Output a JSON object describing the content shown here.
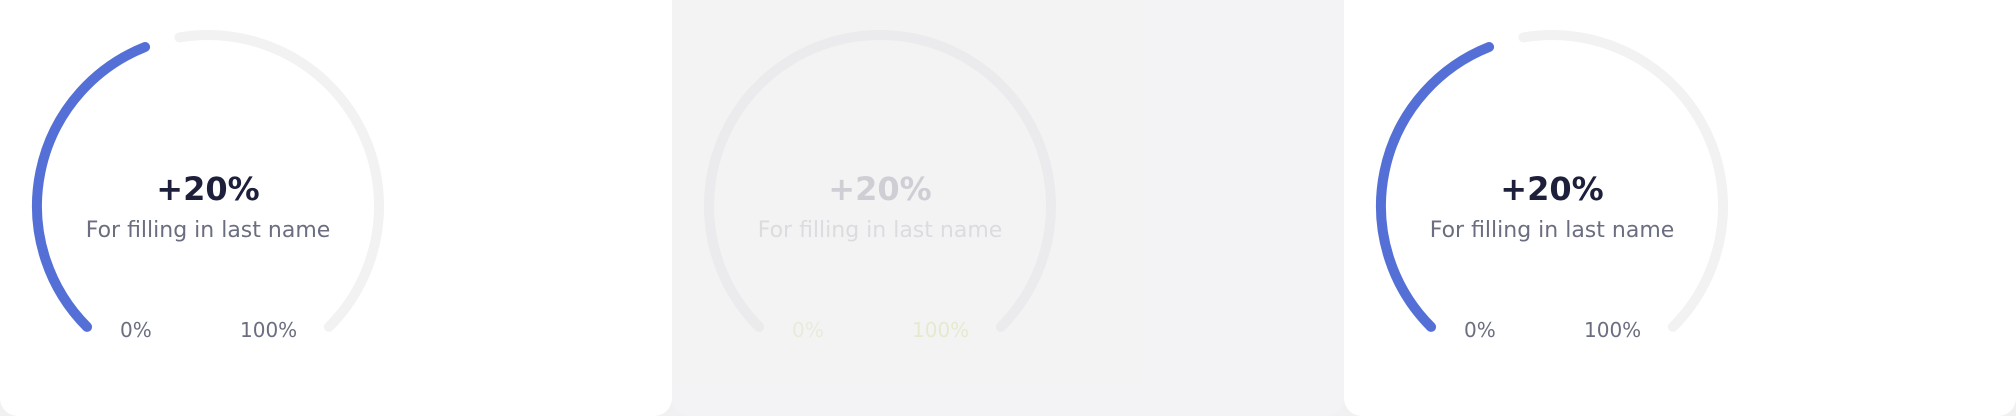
{
  "colors": {
    "accent": "#5470d6",
    "track": "#f2f2f2",
    "value_text": "#1d1f3b",
    "label_text": "#6b6e80",
    "card_bg": "#ffffff"
  },
  "widgets": [
    {
      "value": "+20%",
      "caption": "For filling in last name",
      "min_label": "0%",
      "max_label": "100%",
      "progress": 0.2,
      "state": "active"
    },
    {
      "value": "+20%",
      "caption": "For filling in last name",
      "min_label": "0%",
      "max_label": "100%",
      "progress": 0.0,
      "state": "faded"
    },
    {
      "value": "+20%",
      "caption": "For filling in last name",
      "min_label": "0%",
      "max_label": "100%",
      "progress": 0.2,
      "state": "active"
    }
  ]
}
